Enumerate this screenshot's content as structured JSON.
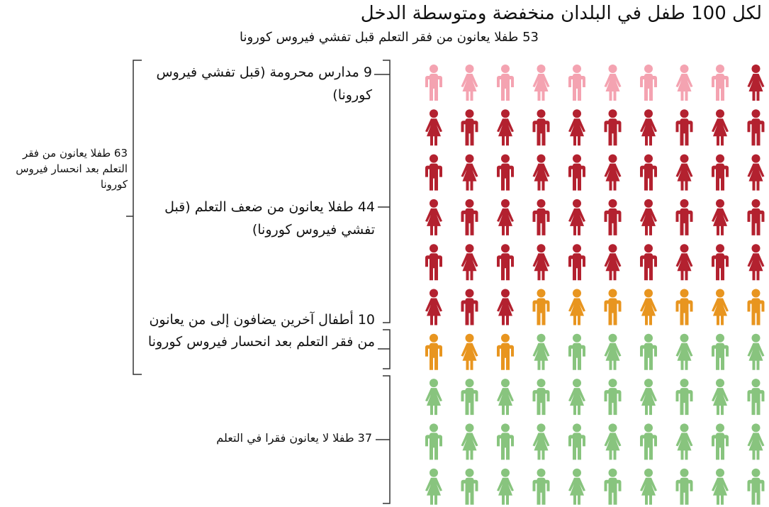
{
  "chart_data": {
    "type": "pictogram",
    "title": "لكل 100 طفل في البلدان منخفضة ومتوسطة الدخل",
    "subtitle": "53 طفلا يعانون من فقر التعلم قبل تفشي فيروس كورونا",
    "group_label": "63 طفلا يعانون من فقر التعلم بعد انحسار فيروس كورونا",
    "series": [
      {
        "name": "9 مدارس محرومة (قبل تفشي فيروس كورونا)",
        "color": "#f4a3b1",
        "value": 9
      },
      {
        "name": "44 طفلا يعانون من ضعف التعلم (قبل تفشي فيروس كورونا)",
        "color": "#b3212f",
        "value": 44
      },
      {
        "name": "10 أطفال آخرين يضافون إلى من يعانون من فقر التعلم بعد انحسار فيروس كورونا",
        "color": "#e8951f",
        "value": 10
      },
      {
        "name": "37 طفلا لا يعانون فقرا في التعلم",
        "color": "#88c47e",
        "value": 37
      }
    ]
  }
}
